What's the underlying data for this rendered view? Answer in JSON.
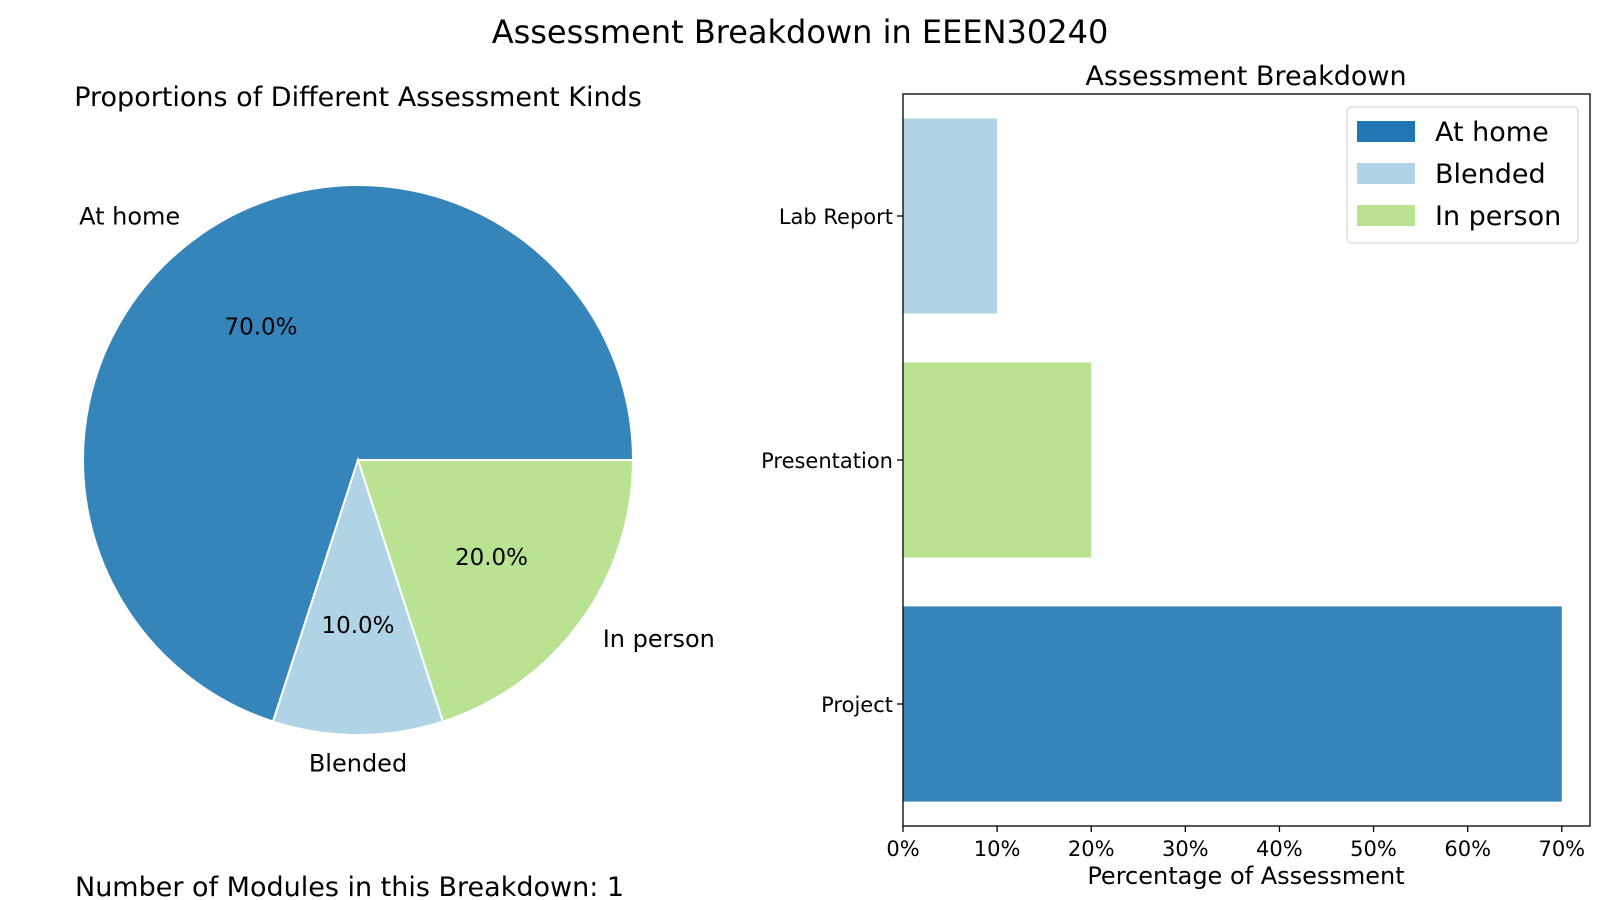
{
  "figure": {
    "title": "Assessment Breakdown in EEEN30240",
    "footer": "Number of Modules in this Breakdown: 1"
  },
  "colors": {
    "at_home": "#3585bb",
    "blended": "#b0d3e6",
    "in_person": "#bae293",
    "legend_at_home": "#2077b4"
  },
  "chart_data": [
    {
      "type": "pie",
      "title": "Proportions of Different Assessment Kinds",
      "labels": [
        "At home",
        "Blended",
        "In person"
      ],
      "values": [
        70,
        10,
        20
      ],
      "pct_labels": [
        "70.0%",
        "10.0%",
        "20.0%"
      ],
      "start_angle_deg": 0,
      "direction": "counterclockwise"
    },
    {
      "type": "bar",
      "orientation": "horizontal",
      "title": "Assessment Breakdown",
      "categories": [
        "Lab Report",
        "Presentation",
        "Project"
      ],
      "values": [
        10,
        20,
        70
      ],
      "bar_kind": [
        "Blended",
        "In person",
        "At home"
      ],
      "xlabel": "Percentage of Assessment",
      "ylabel": "",
      "xlim": [
        0,
        73
      ],
      "xticks": [
        0,
        10,
        20,
        30,
        40,
        50,
        60,
        70
      ],
      "xtick_labels": [
        "0%",
        "10%",
        "20%",
        "30%",
        "40%",
        "50%",
        "60%",
        "70%"
      ],
      "legend": {
        "placement": "top-right",
        "entries": [
          "At home",
          "Blended",
          "In person"
        ]
      },
      "grid": false
    }
  ]
}
